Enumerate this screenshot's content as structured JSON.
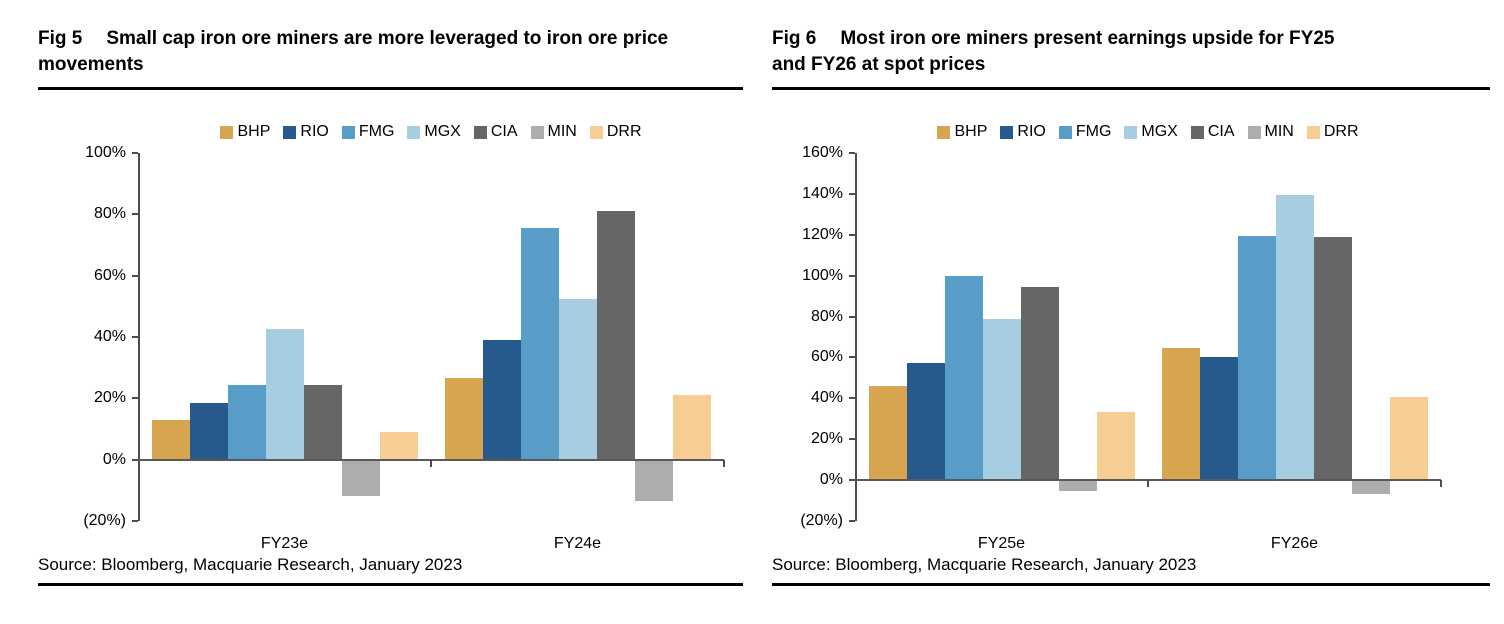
{
  "page": {
    "background": "#ffffff"
  },
  "figures": [
    {
      "fig_label": "Fig 5",
      "heading": "Small cap iron ore miners are more leveraged to iron ore price movements",
      "source": "Source: Bloomberg, Macquarie Research, January 2023",
      "chart_data": {
        "type": "bar",
        "categories": [
          "FY23e",
          "FY24e"
        ],
        "series": [
          {
            "name": "BHP",
            "color": "#D7A44F",
            "values": [
              13,
              26.5
            ]
          },
          {
            "name": "RIO",
            "color": "#265A8C",
            "values": [
              18.5,
              39
            ]
          },
          {
            "name": "FMG",
            "color": "#579DC8",
            "values": [
              24.5,
              75.5
            ]
          },
          {
            "name": "MGX",
            "color": "#A6CDE0",
            "values": [
              42.5,
              52.5
            ]
          },
          {
            "name": "CIA",
            "color": "#666666",
            "values": [
              24.5,
              81
            ]
          },
          {
            "name": "MIN",
            "color": "#ADADAD",
            "values": [
              -12,
              -13.5
            ]
          },
          {
            "name": "DRR",
            "color": "#F6CD92",
            "values": [
              9,
              21
            ]
          }
        ],
        "ylim": [
          -20,
          100
        ],
        "ytick_step": 20,
        "ytick_labels": [
          "100%",
          "80%",
          "60%",
          "40%",
          "20%",
          "0%",
          "(20%)"
        ],
        "legend_position": "top",
        "grid": false,
        "axis_color": "#4d4d4d",
        "baseline_color": "#595959"
      }
    },
    {
      "fig_label": "Fig 6",
      "heading": "Most iron ore miners present earnings upside for FY25 and FY26 at spot prices",
      "source": "Source: Bloomberg, Macquarie Research, January 2023",
      "chart_data": {
        "type": "bar",
        "categories": [
          "FY25e",
          "FY26e"
        ],
        "series": [
          {
            "name": "BHP",
            "color": "#D7A44F",
            "values": [
              46,
              64.5
            ]
          },
          {
            "name": "RIO",
            "color": "#265A8C",
            "values": [
              57.5,
              60
            ]
          },
          {
            "name": "FMG",
            "color": "#579DC8",
            "values": [
              100,
              119.5
            ]
          },
          {
            "name": "MGX",
            "color": "#A6CDE0",
            "values": [
              79,
              139.5
            ]
          },
          {
            "name": "CIA",
            "color": "#666666",
            "values": [
              94.5,
              119
            ]
          },
          {
            "name": "MIN",
            "color": "#ADADAD",
            "values": [
              -5.5,
              -7
            ]
          },
          {
            "name": "DRR",
            "color": "#F6CD92",
            "values": [
              33.5,
              40.5
            ]
          }
        ],
        "ylim": [
          -20,
          160
        ],
        "ytick_step": 20,
        "ytick_labels": [
          "160%",
          "140%",
          "120%",
          "100%",
          "80%",
          "60%",
          "40%",
          "20%",
          "0%",
          "(20%)"
        ],
        "legend_position": "top",
        "grid": false,
        "axis_color": "#4d4d4d",
        "baseline_color": "#595959"
      }
    }
  ]
}
